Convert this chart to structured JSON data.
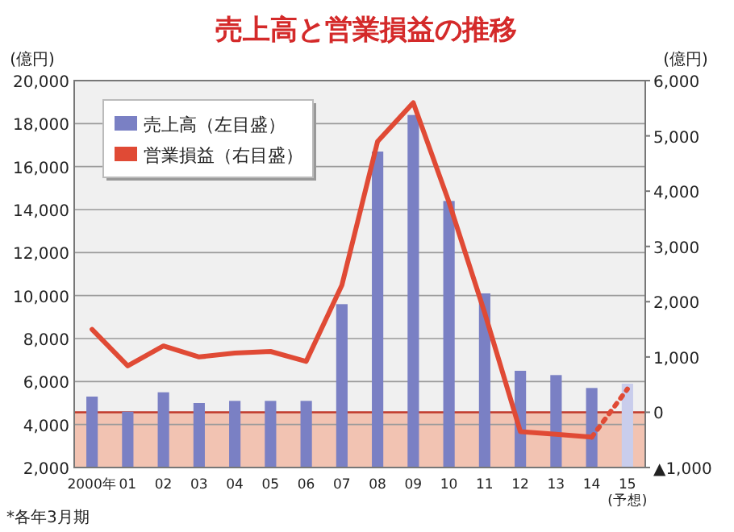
{
  "chart_data": {
    "type": "bar",
    "title": "売上高と営業損益の推移",
    "ylabel": "(億円)",
    "y2label": "(億円)",
    "categories": [
      "2000年",
      "01",
      "02",
      "03",
      "04",
      "05",
      "06",
      "07",
      "08",
      "09",
      "10",
      "11",
      "12",
      "13",
      "14",
      "15\n(予想)"
    ],
    "series": [
      {
        "name": "売上高（左目盛）",
        "color": "#7a80c4",
        "colors": [
          "#7a80c4",
          "#7a80c4",
          "#7a80c4",
          "#7a80c4",
          "#7a80c4",
          "#7a80c4",
          "#7a80c4",
          "#7a80c4",
          "#7a80c4",
          "#7a80c4",
          "#7a80c4",
          "#7a80c4",
          "#7a80c4",
          "#7a80c4",
          "#7a80c4",
          "#c9cdec"
        ],
        "values": [
          5300,
          4600,
          5500,
          5000,
          5100,
          5100,
          5100,
          9600,
          16700,
          18400,
          14400,
          10100,
          6500,
          6300,
          5700,
          5900
        ]
      },
      {
        "name": "営業損益（右目盛）",
        "type": "line",
        "axis": "y2",
        "color": "#e04a35",
        "values": [
          1500,
          840,
          1200,
          1000,
          1070,
          1100,
          920,
          2300,
          4900,
          5600,
          3800,
          1800,
          -350,
          -400,
          -450,
          null
        ]
      },
      {
        "type": "line",
        "axis": "y2",
        "color": "#e04a35",
        "line_style": "dotted",
        "values": [
          null,
          null,
          null,
          null,
          null,
          null,
          null,
          null,
          null,
          null,
          null,
          null,
          null,
          null,
          -450,
          420
        ]
      }
    ],
    "ylim": [
      2000,
      20000
    ],
    "yticks": [
      {
        "value": 2000,
        "label": "2,000"
      },
      {
        "value": 4000,
        "label": "4,000"
      },
      {
        "value": 6000,
        "label": "6,000"
      },
      {
        "value": 8000,
        "label": "8,000"
      },
      {
        "value": 10000,
        "label": "10,000"
      },
      {
        "value": 12000,
        "label": "12,000"
      },
      {
        "value": 14000,
        "label": "14,000"
      },
      {
        "value": 16000,
        "label": "16,000"
      },
      {
        "value": 18000,
        "label": "18,000"
      },
      {
        "value": 20000,
        "label": "20,000"
      }
    ],
    "y2lim": [
      -1000,
      6000
    ],
    "y2ticks": [
      {
        "value": -1000,
        "label": "▲1,000"
      },
      0,
      {
        "value": 1000,
        "label": "1,000"
      },
      {
        "value": 2000,
        "label": "2,000"
      },
      {
        "value": 3000,
        "label": "3,000"
      },
      {
        "value": 4000,
        "label": "4,000"
      },
      {
        "value": 5000,
        "label": "5,000"
      },
      {
        "value": 6000,
        "label": "6,000"
      }
    ],
    "bands": [
      {
        "axis": "y2",
        "from": -1000,
        "to": 0,
        "color": "#f3b8a2"
      }
    ],
    "ref_lines": [
      {
        "axis": "y2",
        "value": 0,
        "color": "#c0392b"
      }
    ],
    "grid": "y",
    "legend": "top left",
    "annotations": [
      "*各年3月期"
    ]
  }
}
